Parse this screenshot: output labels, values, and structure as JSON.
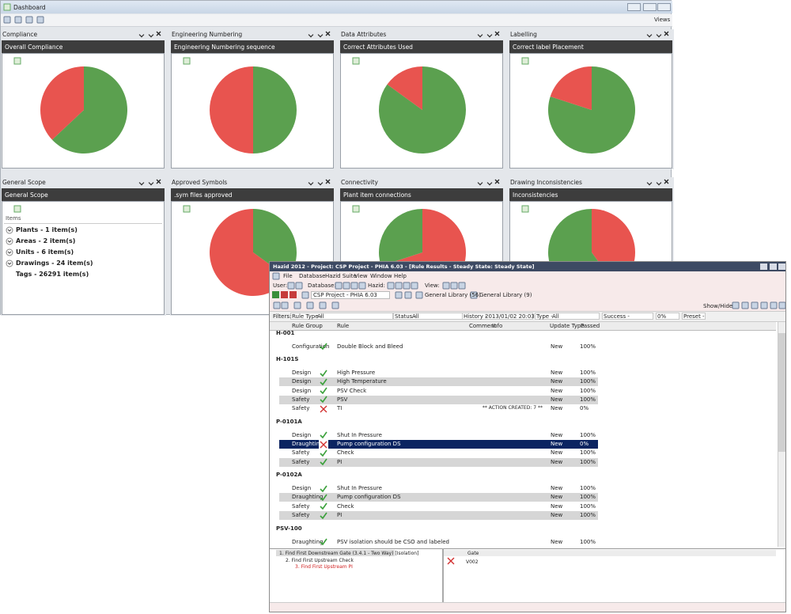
{
  "dashboard": {
    "title": "Dashboard",
    "views": "Views",
    "panels": [
      {
        "title": "Compliance",
        "header": "Overall Compliance",
        "chart": {
          "type": "pie",
          "values": [
            63,
            37
          ],
          "colors": [
            "#5ba04f",
            "#e8544f"
          ]
        }
      },
      {
        "title": "Engineering Numbering",
        "header": "Engineering Numbering sequence",
        "chart": {
          "type": "pie",
          "values": [
            50,
            50
          ],
          "colors": [
            "#5ba04f",
            "#e8544f"
          ]
        }
      },
      {
        "title": "Data Attributes",
        "header": "Correct Attributes Used",
        "chart": {
          "type": "pie",
          "values": [
            85,
            15
          ],
          "colors": [
            "#5ba04f",
            "#e8544f"
          ]
        }
      },
      {
        "title": "Labelling",
        "header": "Correct label Placement",
        "chart": {
          "type": "pie",
          "values": [
            80,
            20
          ],
          "colors": [
            "#5ba04f",
            "#e8544f"
          ]
        }
      },
      {
        "title": "General Scope",
        "header": "General Scope",
        "list": {
          "header": "Items",
          "items": [
            {
              "label": "Plants - 1 item(s)",
              "expandable": true
            },
            {
              "label": "Areas - 2 item(s)",
              "expandable": true
            },
            {
              "label": "Units - 6 item(s)",
              "expandable": true
            },
            {
              "label": "Drawings - 24 item(s)",
              "expandable": true
            },
            {
              "label": "Tags - 26291 item(s)",
              "expandable": false
            }
          ]
        }
      },
      {
        "title": "Approved Symbols",
        "header": ".sym files approved",
        "chart": {
          "type": "pie",
          "values": [
            35,
            65
          ],
          "colors": [
            "#5ba04f",
            "#e8544f"
          ]
        }
      },
      {
        "title": "Connectivity",
        "header": "Plant item connections",
        "chart": {
          "type": "pie",
          "values": [
            70,
            30
          ],
          "colors": [
            "#e8544f",
            "#5ba04f"
          ]
        }
      },
      {
        "title": "Drawing Inconsistencies",
        "header": "Inconsistencies",
        "chart": {
          "type": "pie",
          "values": [
            40,
            60
          ],
          "colors": [
            "#e8544f",
            "#5ba04f"
          ]
        }
      }
    ]
  },
  "hazid": {
    "title": "Hazid 2012 - Project: CSP Project - PHIA 6.03 - [Rule Results - Steady State: Steady State]",
    "menu": [
      "File",
      "Database",
      "Hazid Suite",
      "View",
      "Window",
      "Help"
    ],
    "toolbar": {
      "user": "User:",
      "database": "Database:",
      "hazid": "Hazid:",
      "view": "View:",
      "project": "CSP Project - PHIA 6.03",
      "library1": "General Library (56)",
      "library2": "General Library (9)",
      "show_hide": "Show/Hide:"
    },
    "filters": {
      "label": "Filters:",
      "rule_type": "Rule Type -",
      "rule_type_value": "All",
      "status": "Status -",
      "status_value": "All",
      "history": "History -",
      "history_value": "2013/01/02 20:03",
      "type": "Type -",
      "type_value": "All",
      "success": "Success -",
      "success_value": "0%",
      "preset": "Preset -"
    },
    "columns": [
      "Rule Group",
      "Rule",
      "Comment",
      "Info",
      "Update Type",
      "Passed"
    ],
    "groups": [
      {
        "name": "H-001",
        "rows": [
          {
            "group": "Configuration",
            "status": "pass",
            "rule": "Double Block and Bleed",
            "update": "New",
            "passed": "100%"
          }
        ]
      },
      {
        "name": "H-101S",
        "rows": [
          {
            "group": "Design",
            "status": "pass",
            "rule": "High Pressure",
            "update": "New",
            "passed": "100%"
          },
          {
            "group": "Design",
            "status": "pass",
            "rule": "High Temperature",
            "update": "New",
            "passed": "100%"
          },
          {
            "group": "Design",
            "status": "pass",
            "rule": "PSV Check",
            "update": "New",
            "passed": "100%"
          },
          {
            "group": "Safety",
            "status": "pass",
            "rule": "PSV",
            "update": "New",
            "passed": "100%"
          },
          {
            "group": "Safety",
            "status": "fail",
            "rule": "TI",
            "comment": "** ACTION CREATED: 7 **",
            "update": "New",
            "passed": "0%"
          }
        ]
      },
      {
        "name": "P-0101A",
        "rows": [
          {
            "group": "Design",
            "status": "pass",
            "rule": "Shut In Pressure",
            "update": "New",
            "passed": "100%"
          },
          {
            "group": "Draughting",
            "status": "fail",
            "rule": "Pump configuration DS",
            "update": "New",
            "passed": "0%",
            "selected": true
          },
          {
            "group": "Safety",
            "status": "pass",
            "rule": "Check",
            "update": "New",
            "passed": "100%"
          },
          {
            "group": "Safety",
            "status": "pass",
            "rule": "PI",
            "update": "New",
            "passed": "100%"
          }
        ]
      },
      {
        "name": "P-0102A",
        "rows": [
          {
            "group": "Design",
            "status": "pass",
            "rule": "Shut In Pressure",
            "update": "New",
            "passed": "100%"
          },
          {
            "group": "Draughting",
            "status": "pass",
            "rule": "Pump configuration DS",
            "update": "New",
            "passed": "100%"
          },
          {
            "group": "Safety",
            "status": "pass",
            "rule": "Check",
            "update": "New",
            "passed": "100%"
          },
          {
            "group": "Safety",
            "status": "pass",
            "rule": "PI",
            "update": "New",
            "passed": "100%"
          }
        ]
      },
      {
        "name": "PSV-100",
        "rows": [
          {
            "group": "Draughting",
            "status": "pass",
            "rule": "PSV isolation should be CSO and labeled",
            "update": "New",
            "passed": "100%"
          }
        ]
      }
    ],
    "trace": [
      "1. Find First Downstream Gate (3.4.1 - Two Way) [Isolation]",
      "2. Find First Upstream Check",
      "3. Find First Upstream PI"
    ],
    "gate": {
      "header": "Gate",
      "value": "V002"
    }
  }
}
